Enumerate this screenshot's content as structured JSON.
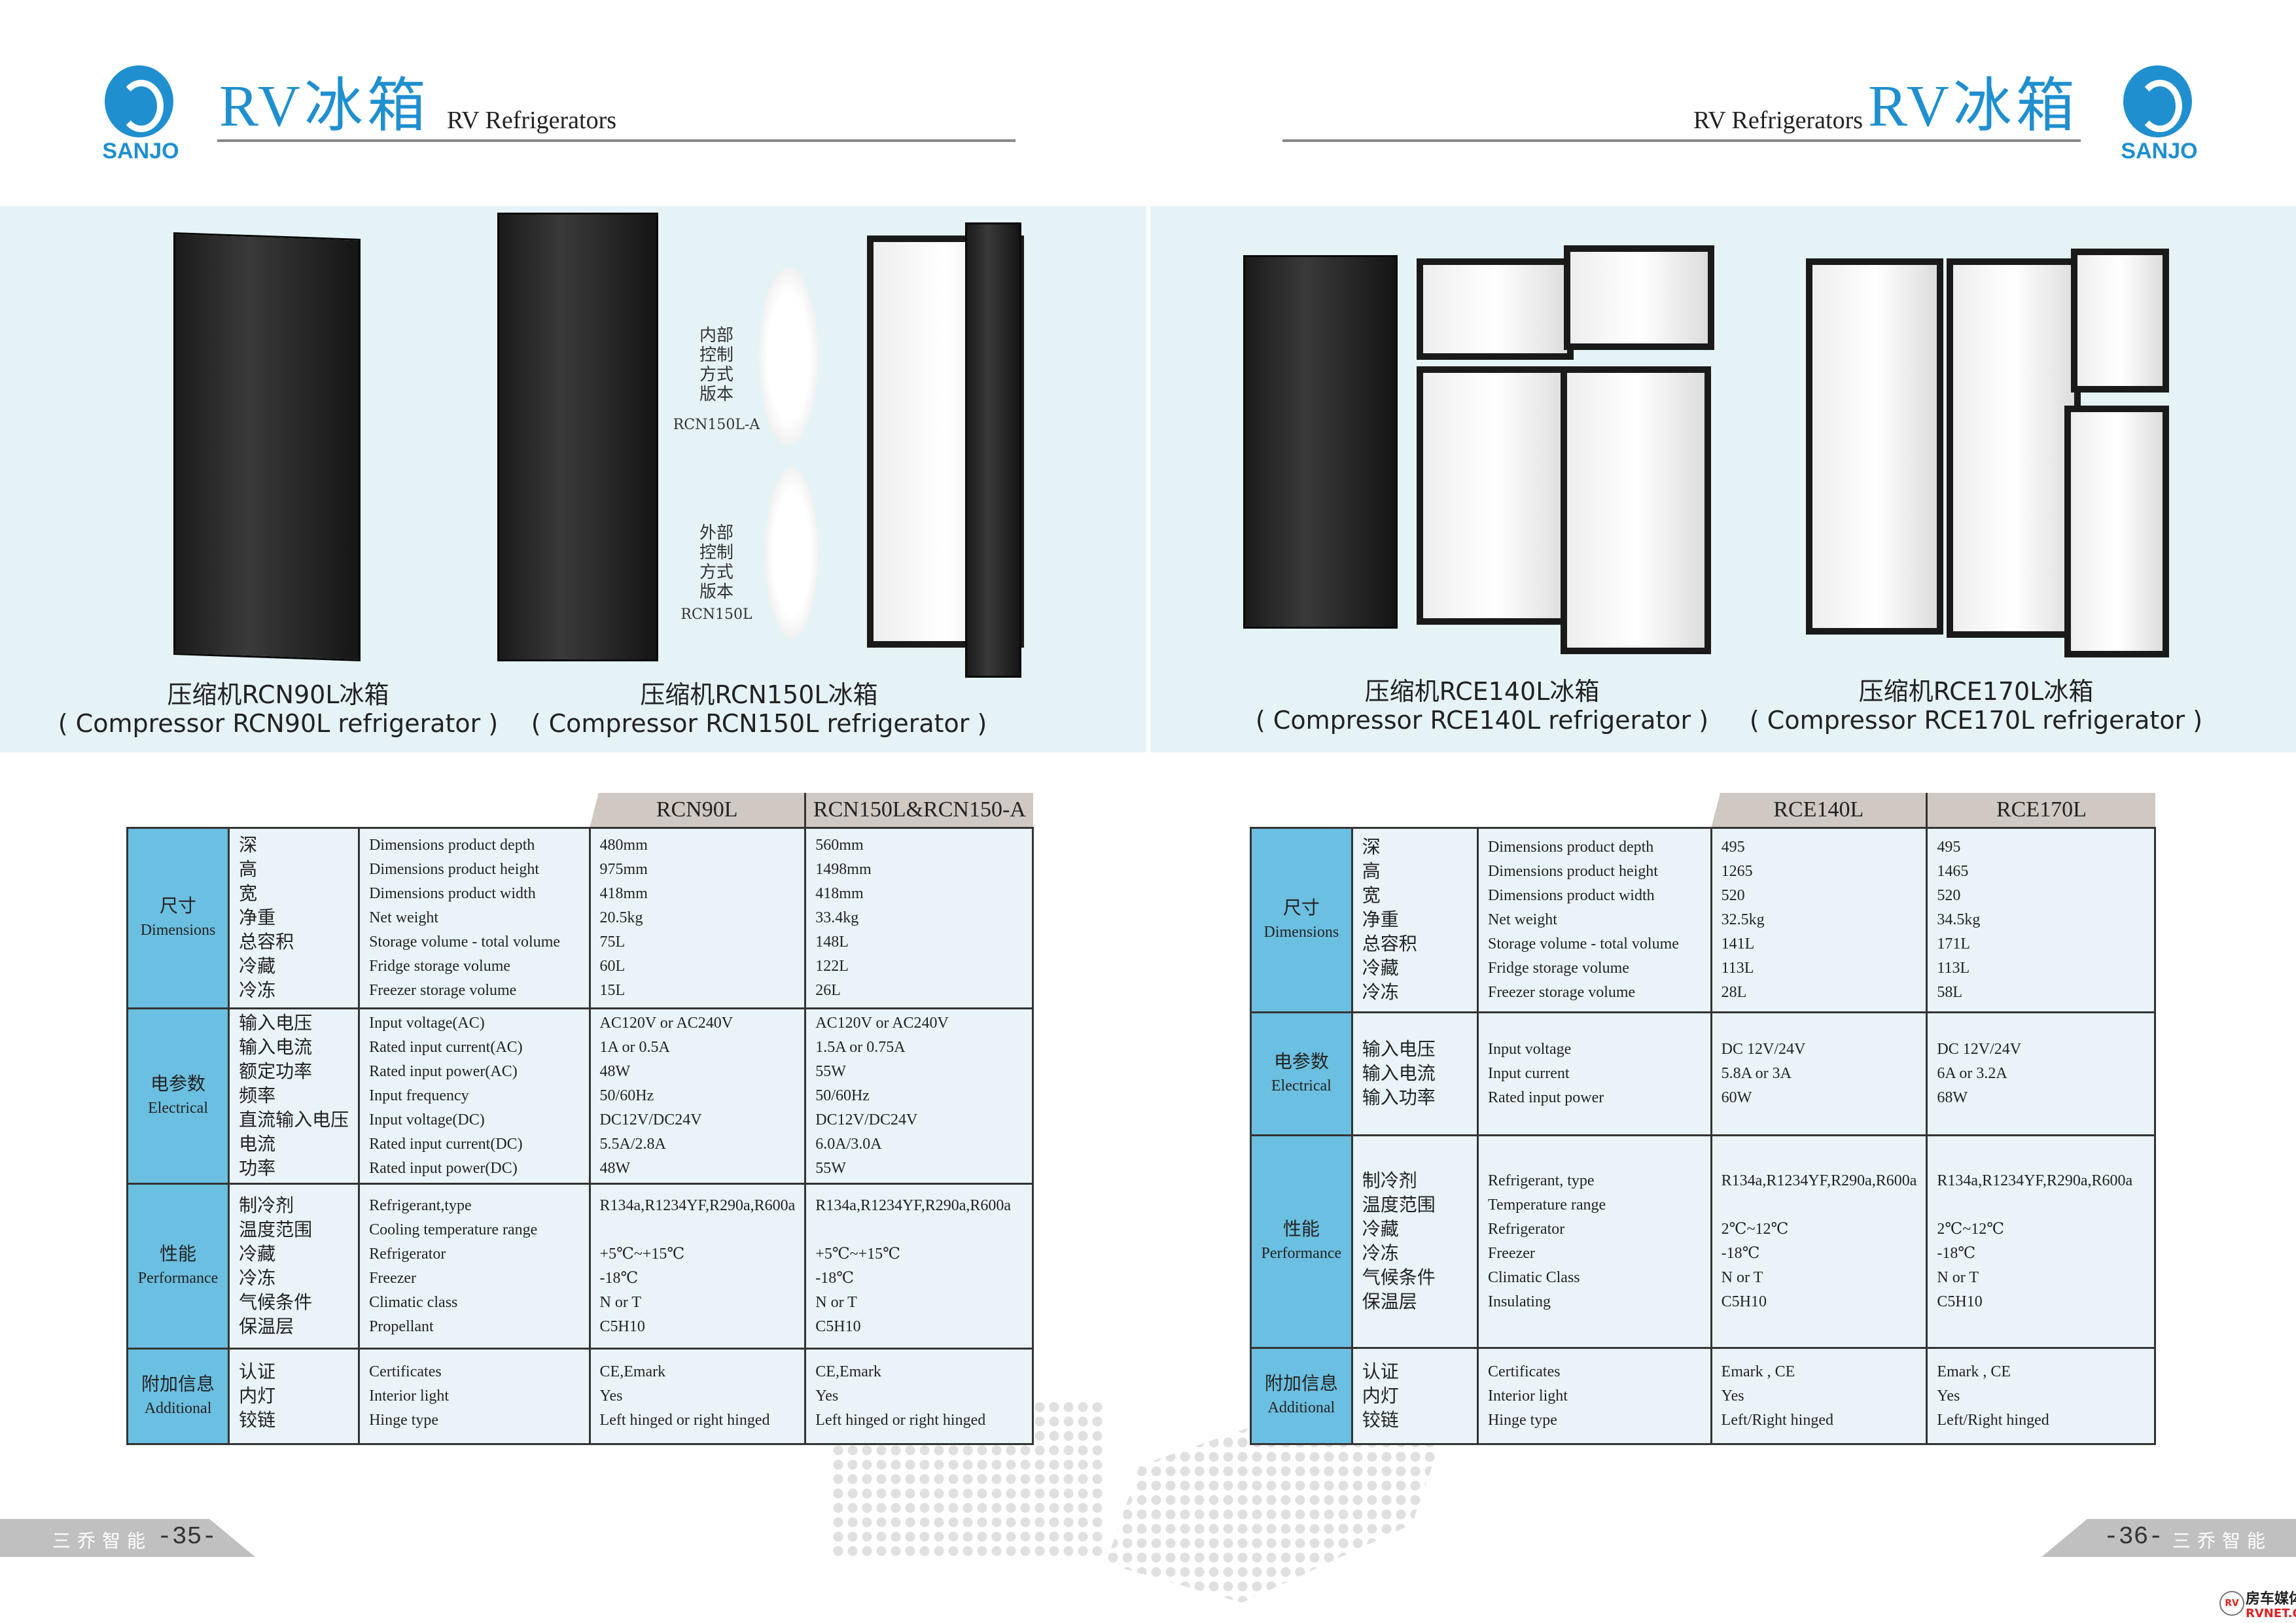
{
  "left_page": {
    "logo_text": "SANJO",
    "title": "RV冰箱",
    "subtitle": "RV Refrigerators",
    "products": [
      {
        "cn": "压缩机RCN90L冰箱",
        "en": "( Compressor RCN90L refrigerator )"
      },
      {
        "cn": "压缩机RCN150L冰箱",
        "en": "( Compressor RCN150L refrigerator )"
      }
    ],
    "callouts": [
      {
        "cn": [
          "内部",
          "控制",
          "方式",
          "版本"
        ],
        "model": "RCN150L-A"
      },
      {
        "cn": [
          "外部",
          "控制",
          "方式",
          "版本"
        ],
        "model": "RCN150L"
      }
    ],
    "table": {
      "models": [
        "RCN90L",
        "RCN150L&RCN150-A"
      ],
      "groups": [
        {
          "cn": "尺寸",
          "en": "Dimensions",
          "rows": [
            {
              "cn": "深",
              "en": "Dimensions product depth",
              "v": [
                "480mm",
                "560mm"
              ]
            },
            {
              "cn": "高",
              "en": "Dimensions product height",
              "v": [
                "975mm",
                "1498mm"
              ]
            },
            {
              "cn": "宽",
              "en": "Dimensions product width",
              "v": [
                "418mm",
                "418mm"
              ]
            },
            {
              "cn": "净重",
              "en": "Net weight",
              "v": [
                "20.5kg",
                "33.4kg"
              ]
            },
            {
              "cn": "总容积",
              "en": "Storage volume - total volume",
              "v": [
                "75L",
                "148L"
              ]
            },
            {
              "cn": "冷藏",
              "en": "Fridge storage volume",
              "v": [
                "60L",
                "122L"
              ]
            },
            {
              "cn": "冷冻",
              "en": "Freezer storage volume",
              "v": [
                "15L",
                "26L"
              ]
            }
          ]
        },
        {
          "cn": "电参数",
          "en": "Electrical",
          "rows": [
            {
              "cn": "输入电压",
              "en": "Input voltage(AC)",
              "v": [
                "AC120V or AC240V",
                "AC120V or AC240V"
              ]
            },
            {
              "cn": "输入电流",
              "en": "Rated input current(AC)",
              "v": [
                "1A or 0.5A",
                "1.5A or 0.75A"
              ]
            },
            {
              "cn": "额定功率",
              "en": "Rated input power(AC)",
              "v": [
                "48W",
                "55W"
              ]
            },
            {
              "cn": "频率",
              "en": "Input frequency",
              "v": [
                "50/60Hz",
                "50/60Hz"
              ]
            },
            {
              "cn": "直流输入电压",
              "en": "Input voltage(DC)",
              "v": [
                "DC12V/DC24V",
                "DC12V/DC24V"
              ]
            },
            {
              "cn": "电流",
              "en": "Rated input current(DC)",
              "v": [
                "5.5A/2.8A",
                "6.0A/3.0A"
              ]
            },
            {
              "cn": "功率",
              "en": "Rated input power(DC)",
              "v": [
                "48W",
                "55W"
              ]
            }
          ]
        },
        {
          "cn": "性能",
          "en": "Performance",
          "rows": [
            {
              "cn": "制冷剂",
              "en": "Refrigerant,type",
              "v": [
                "R134a,R1234YF,R290a,R600a",
                "R134a,R1234YF,R290a,R600a"
              ]
            },
            {
              "cn": "温度范围",
              "en": "Cooling temperature range",
              "v": [
                "",
                ""
              ]
            },
            {
              "cn": "冷藏",
              "en": "Refrigerator",
              "v": [
                "+5℃~+15℃",
                "+5℃~+15℃"
              ]
            },
            {
              "cn": "冷冻",
              "en": "Freezer",
              "v": [
                "-18℃",
                "-18℃"
              ]
            },
            {
              "cn": "气候条件",
              "en": "Climatic class",
              "v": [
                "N or T",
                "N or T"
              ]
            },
            {
              "cn": "保温层",
              "en": "Propellant",
              "v": [
                "C5H10",
                "C5H10"
              ]
            }
          ]
        },
        {
          "cn": "附加信息",
          "en": "Additional",
          "rows": [
            {
              "cn": "认证",
              "en": "Certificates",
              "v": [
                "CE,Emark",
                "CE,Emark"
              ]
            },
            {
              "cn": "内灯",
              "en": "Interior light",
              "v": [
                "Yes",
                "Yes"
              ]
            },
            {
              "cn": "铰链",
              "en": "Hinge type",
              "v": [
                "Left hinged or right hinged",
                "Left hinged or right hinged"
              ]
            }
          ]
        }
      ]
    },
    "footer": {
      "brand": "三乔智能",
      "page": "-35-"
    }
  },
  "right_page": {
    "logo_text": "SANJO",
    "title": "RV冰箱",
    "subtitle": "RV Refrigerators",
    "products": [
      {
        "cn": "压缩机RCE140L冰箱",
        "en": "( Compressor RCE140L refrigerator )"
      },
      {
        "cn": "压缩机RCE170L冰箱",
        "en": "( Compressor RCE170L refrigerator )"
      }
    ],
    "table": {
      "models": [
        "RCE140L",
        "RCE170L"
      ],
      "groups": [
        {
          "cn": "尺寸",
          "en": "Dimensions",
          "rows": [
            {
              "cn": "深",
              "en": "Dimensions product depth",
              "v": [
                "495",
                "495"
              ]
            },
            {
              "cn": "高",
              "en": "Dimensions product height",
              "v": [
                "1265",
                "1465"
              ]
            },
            {
              "cn": "宽",
              "en": "Dimensions product width",
              "v": [
                "520",
                "520"
              ]
            },
            {
              "cn": "净重",
              "en": "Net weight",
              "v": [
                "32.5kg",
                "34.5kg"
              ]
            },
            {
              "cn": "总容积",
              "en": "Storage volume - total volume",
              "v": [
                "141L",
                "171L"
              ]
            },
            {
              "cn": "冷藏",
              "en": "Fridge storage volume",
              "v": [
                "113L",
                "113L"
              ]
            },
            {
              "cn": "冷冻",
              "en": "Freezer storage volume",
              "v": [
                "28L",
                "58L"
              ]
            }
          ]
        },
        {
          "cn": "电参数",
          "en": "Electrical",
          "rows": [
            {
              "cn": "输入电压",
              "en": "Input voltage",
              "v": [
                "DC 12V/24V",
                "DC 12V/24V"
              ]
            },
            {
              "cn": "输入电流",
              "en": "Input current",
              "v": [
                "5.8A  or 3A",
                "6A  or 3.2A"
              ]
            },
            {
              "cn": "输入功率",
              "en": "Rated input power",
              "v": [
                "60W",
                "68W"
              ]
            }
          ]
        },
        {
          "cn": "性能",
          "en": "Performance",
          "rows": [
            {
              "cn": "制冷剂",
              "en": "Refrigerant, type",
              "v": [
                "R134a,R1234YF,R290a,R600a",
                "R134a,R1234YF,R290a,R600a"
              ]
            },
            {
              "cn": "温度范围",
              "en": "Temperature range",
              "v": [
                "",
                ""
              ]
            },
            {
              "cn": "冷藏",
              "en": "Refrigerator",
              "v": [
                "2℃~12℃",
                "2℃~12℃"
              ]
            },
            {
              "cn": "冷冻",
              "en": "Freezer",
              "v": [
                "-18℃",
                "-18℃"
              ]
            },
            {
              "cn": "气候条件",
              "en": "Climatic Class",
              "v": [
                "N or T",
                "N or T"
              ]
            },
            {
              "cn": "保温层",
              "en": "Insulating",
              "v": [
                "C5H10",
                "C5H10"
              ]
            }
          ]
        },
        {
          "cn": "附加信息",
          "en": "Additional",
          "rows": [
            {
              "cn": "认证",
              "en": "Certificates",
              "v": [
                "Emark , CE",
                "Emark , CE"
              ]
            },
            {
              "cn": "内灯",
              "en": "Interior light",
              "v": [
                "Yes",
                "Yes"
              ]
            },
            {
              "cn": "铰链",
              "en": "Hinge type",
              "v": [
                "Left/Right hinged",
                "Left/Right hinged"
              ]
            }
          ]
        }
      ]
    },
    "footer": {
      "brand": "三乔智能",
      "page": "-36-"
    }
  },
  "watermark": {
    "cn": "房车媒体",
    "en": "RVNET.CN",
    "badge": "RV"
  },
  "colors": {
    "brand_blue": "#1f8fcf",
    "category_cell": "#6bbfe0",
    "cell_bg": "#eaf4f8",
    "band_bg": "#e6f3f6",
    "model_header": "#cfc8c3",
    "footer_gray": "#c0c0c0"
  }
}
